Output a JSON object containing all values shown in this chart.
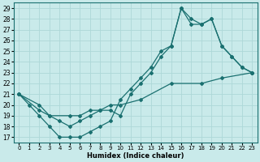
{
  "xlabel": "Humidex (Indice chaleur)",
  "bg_color": "#c9eaea",
  "line_color": "#1a7070",
  "grid_color": "#add8d8",
  "xlim": [
    -0.5,
    23.5
  ],
  "ylim": [
    16.5,
    29.5
  ],
  "yticks": [
    17,
    18,
    19,
    20,
    21,
    22,
    23,
    24,
    25,
    26,
    27,
    28,
    29
  ],
  "xticks": [
    0,
    1,
    2,
    3,
    4,
    5,
    6,
    7,
    8,
    9,
    10,
    11,
    12,
    13,
    14,
    15,
    16,
    17,
    18,
    19,
    20,
    21,
    22,
    23
  ],
  "line1_x": [
    0,
    1,
    2,
    3,
    4,
    5,
    6,
    7,
    8,
    9,
    10,
    11,
    12,
    13,
    14,
    15,
    16,
    17,
    18,
    19,
    20,
    21,
    22,
    23
  ],
  "line1_y": [
    21,
    20,
    19,
    18,
    17,
    17,
    17,
    17.5,
    18,
    18.5,
    20.5,
    21.5,
    22.5,
    23.5,
    25,
    25.5,
    29,
    27.5,
    27.5,
    28,
    25.5,
    24.5,
    23.5,
    23
  ],
  "line2_x": [
    0,
    2,
    3,
    4,
    5,
    6,
    7,
    8,
    9,
    10,
    11,
    12,
    13,
    14,
    15,
    16,
    17,
    18,
    19,
    20,
    21,
    22,
    23
  ],
  "line2_y": [
    21,
    19.5,
    19,
    18.5,
    18,
    18.5,
    19,
    19.5,
    19.5,
    19,
    21,
    22,
    23,
    24.5,
    25.5,
    29,
    28,
    27.5,
    28,
    25.5,
    24.5,
    23.5,
    23
  ],
  "line3_x": [
    0,
    2,
    3,
    5,
    6,
    7,
    8,
    9,
    10,
    12,
    15,
    18,
    20,
    23
  ],
  "line3_y": [
    21,
    20,
    19,
    19,
    19,
    19.5,
    19.5,
    20,
    20,
    20.5,
    22,
    22,
    22.5,
    23
  ]
}
